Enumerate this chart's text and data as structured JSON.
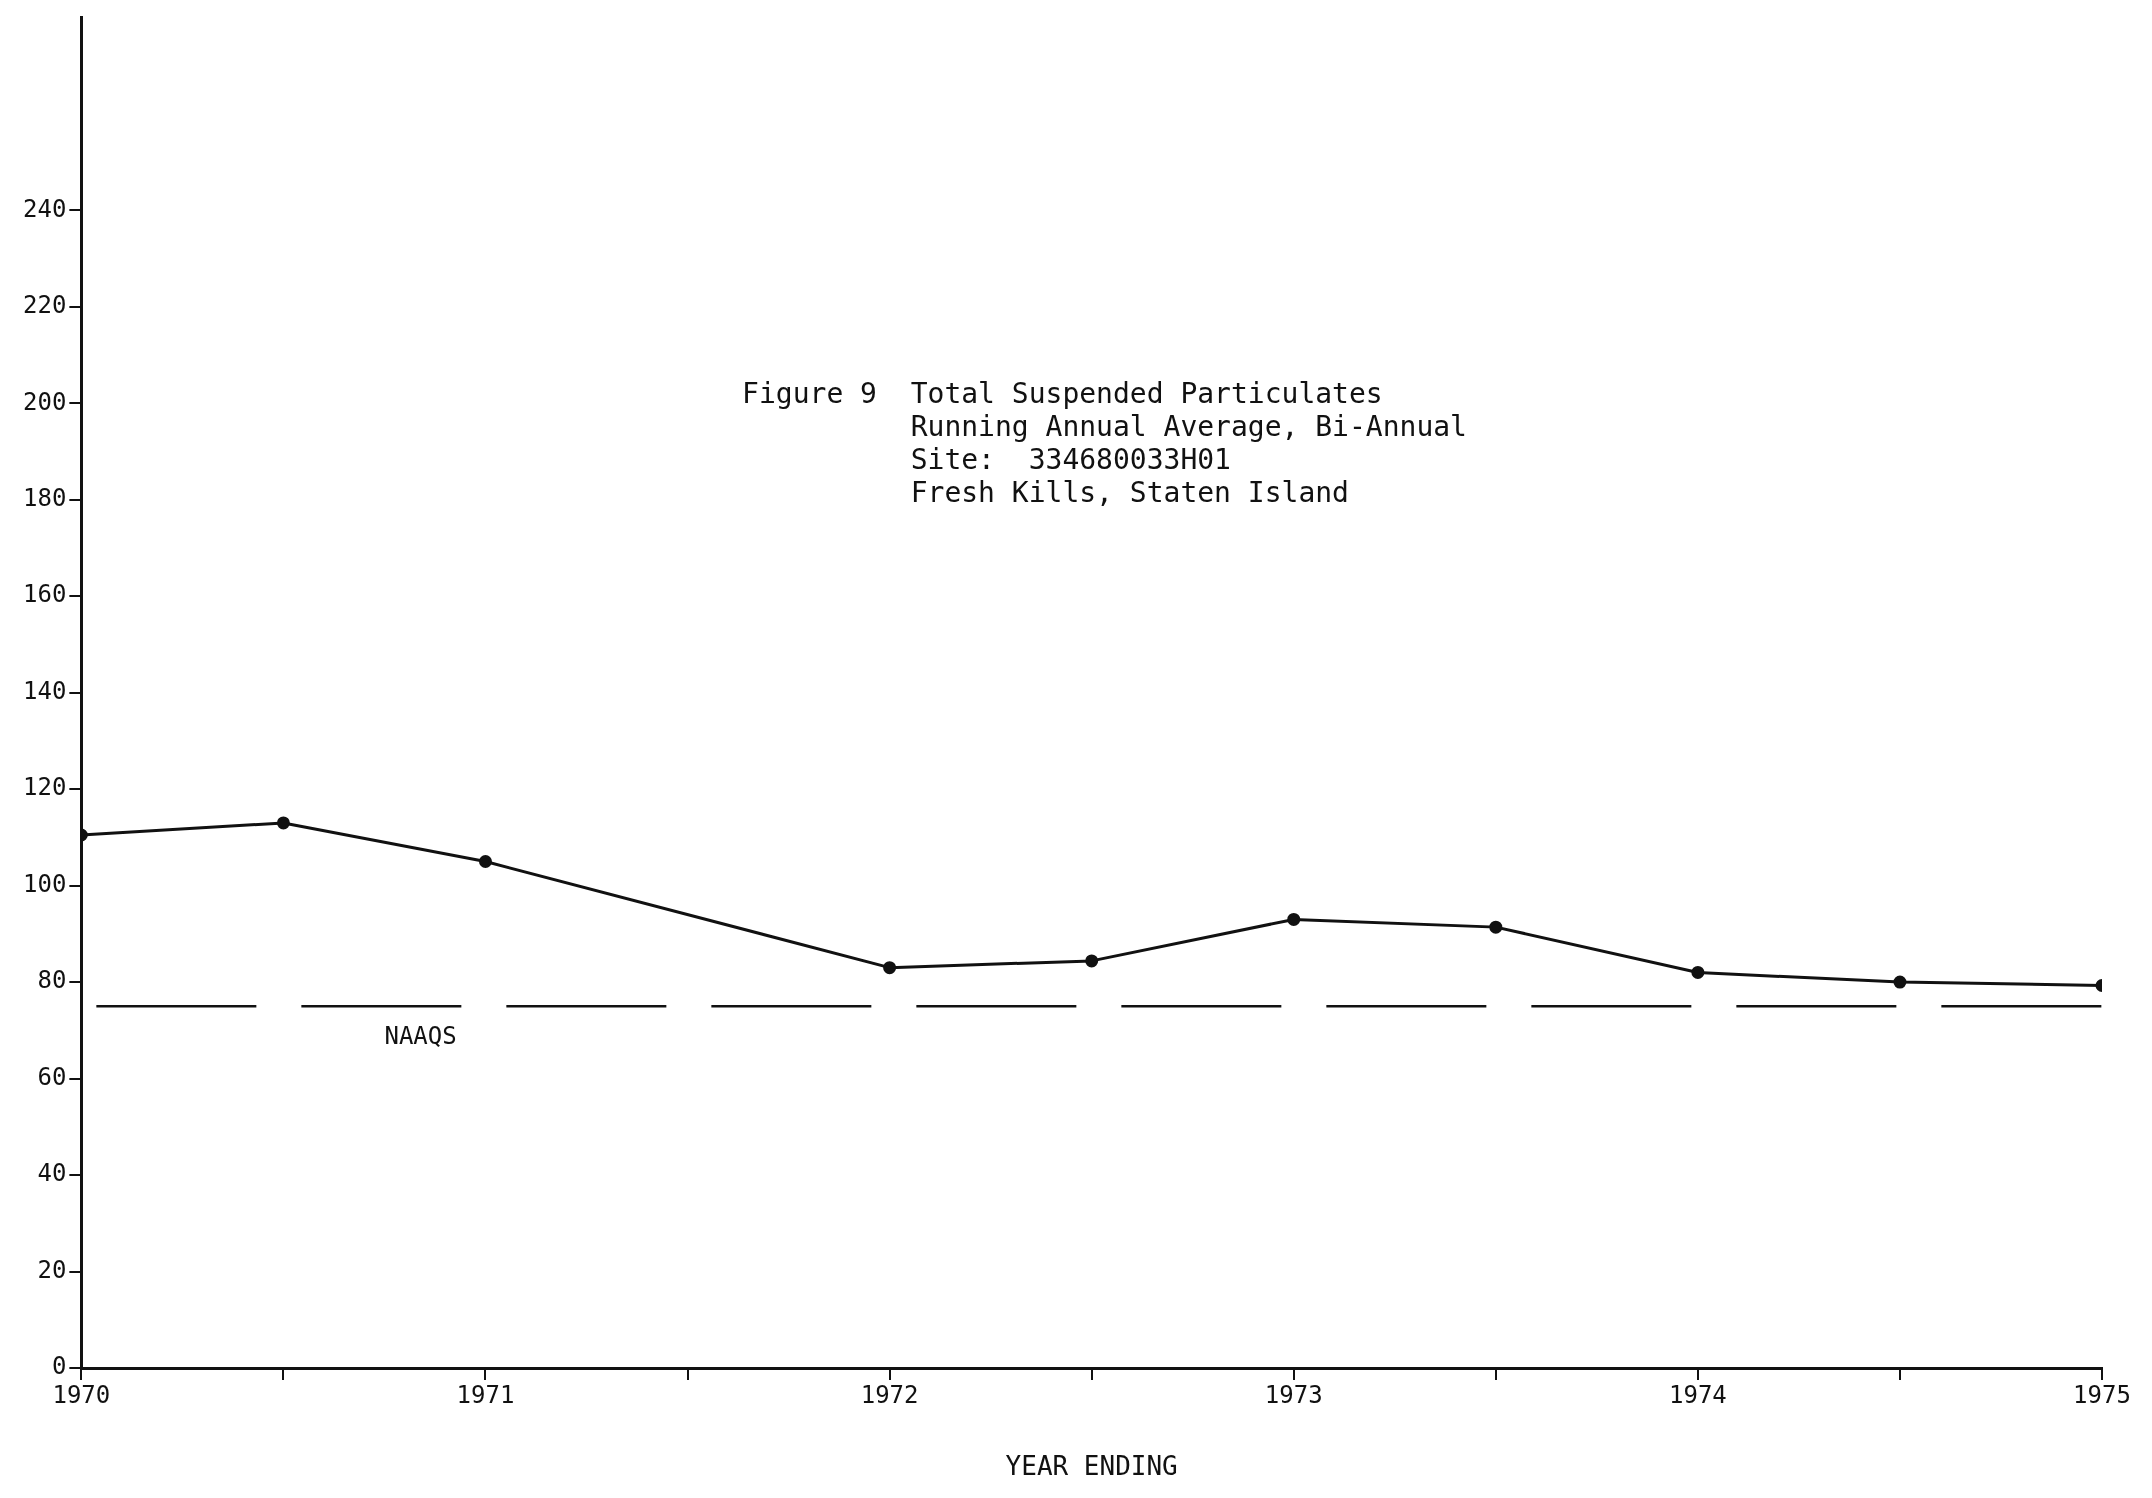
{
  "chart_data": {
    "type": "line",
    "title": "Figure 9  Total Suspended Particulates",
    "subtitle": "Running Annual Average, Bi-Annual\nSite:  334680033H01\nFresh Kills, Staten Island",
    "xlabel": "YEAR ENDING",
    "x": [
      1970,
      1970.5,
      1971,
      1972,
      1972.5,
      1973,
      1973.5,
      1974,
      1974.5,
      1975
    ],
    "values": [
      110.5,
      113,
      105,
      83,
      84.4,
      93,
      91.4,
      82,
      80,
      79.3
    ],
    "color": "#111111",
    "marker": "circle",
    "line_style": "solid",
    "grid": false,
    "legend": false,
    "xlim": [
      1970,
      1975
    ],
    "xticks": [
      1970,
      {
        "value": 1970.5,
        "label": null
      },
      1971,
      {
        "value": 1971.5,
        "label": null
      },
      1972,
      {
        "value": 1972.5,
        "label": null
      },
      1973,
      {
        "value": 1973.5,
        "label": null
      },
      1974,
      {
        "value": 1974.5,
        "label": null
      },
      1975
    ],
    "ylim": [
      0,
      280
    ],
    "yticks": [
      0,
      20,
      40,
      60,
      80,
      100,
      120,
      140,
      160,
      180,
      200,
      220,
      240
    ],
    "ref_lines": [
      {
        "axis": "y",
        "value": 75,
        "label": "NAAQS",
        "line_style": "dashed",
        "color": "#111111"
      }
    ]
  }
}
